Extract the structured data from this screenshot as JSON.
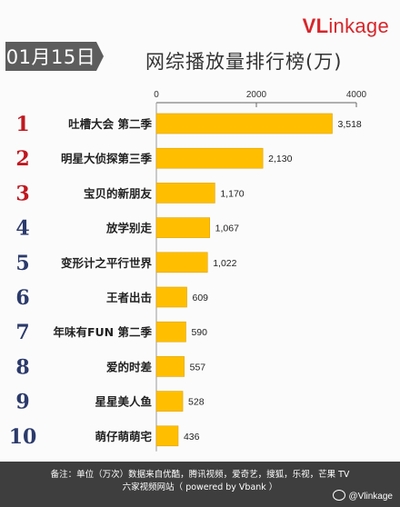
{
  "header": {
    "date_label": "01月15日",
    "title": "网综播放量排行榜(万)",
    "logo_v": "VL",
    "logo_rest": "inkage"
  },
  "chart_data": {
    "type": "bar",
    "orientation": "horizontal",
    "title": "网综播放量排行榜(万)",
    "xlim": [
      0,
      4000
    ],
    "x_ticks": [
      0,
      2000,
      4000
    ],
    "x_tick_labels": [
      "0",
      "2000",
      "4000"
    ],
    "ranks": [
      "1",
      "2",
      "3",
      "4",
      "5",
      "6",
      "7",
      "8",
      "9",
      "10"
    ],
    "categories": [
      "吐槽大会 第二季",
      "明星大侦探第三季",
      "宝贝的新朋友",
      "放学别走",
      "变形计之平行世界",
      "王者出击",
      "年味有FUN 第二季",
      "爱的时差",
      "星星美人鱼",
      "萌仔萌萌宅"
    ],
    "values": [
      3518,
      2130,
      1170,
      1067,
      1022,
      609,
      590,
      557,
      528,
      436
    ],
    "value_labels": [
      "3,518",
      "2,130",
      "1,170",
      "1,067",
      "1,022",
      "609",
      "590",
      "557",
      "528",
      "436"
    ],
    "bar_color": "#ffbf00",
    "rank_colors": [
      "#c0171f",
      "#c0171f",
      "#c0171f",
      "#2b3a6b",
      "#2b3a6b",
      "#2b3a6b",
      "#2b3a6b",
      "#2b3a6b",
      "#2b3a6b",
      "#2b3a6b"
    ]
  },
  "footer": {
    "line1": "备注：单位（万次）数据来自优酷，腾讯视频，爱奇艺，搜狐，乐视，芒果 TV",
    "line2": "六家视频网站（ powered by Vbank ）",
    "weibo": "@Vlinkage"
  }
}
